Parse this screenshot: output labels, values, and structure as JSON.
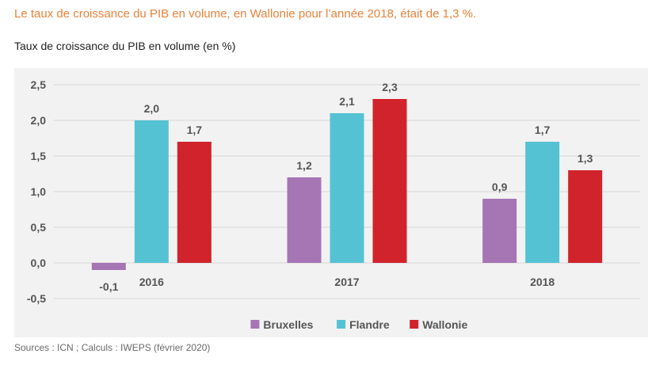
{
  "headline": "Le taux de croissance du PIB en volume, en Wallonie pour l’année 2018, était de 1,3 %.",
  "source": "Sources : ICN ; Calculs : IWEPS (février 2020)",
  "colors": {
    "headline": "#e8823a",
    "grid": "#d6d6d6",
    "axis_text": "#555555",
    "panel_bg": "#f2f2f2"
  },
  "chart_data": {
    "type": "bar",
    "title": "Taux de croissance du PIB en volume (en %)",
    "categories": [
      "2016",
      "2017",
      "2018"
    ],
    "series": [
      {
        "name": "Bruxelles",
        "color": "#a575b4",
        "values": [
          -0.1,
          1.2,
          0.9
        ],
        "labels": [
          "-0,1",
          "1,2",
          "0,9"
        ]
      },
      {
        "name": "Flandre",
        "color": "#55c2d4",
        "values": [
          2.0,
          2.1,
          1.7
        ],
        "labels": [
          "2,0",
          "2,1",
          "1,7"
        ]
      },
      {
        "name": "Wallonie",
        "color": "#d0232b",
        "values": [
          1.7,
          2.3,
          1.3
        ],
        "labels": [
          "1,7",
          "2,3",
          "1,3"
        ]
      }
    ],
    "ylim": [
      -0.5,
      2.5
    ],
    "yticks": [
      2.5,
      2.0,
      1.5,
      1.0,
      0.5,
      0.0,
      -0.5
    ],
    "ytick_labels": [
      "2,5",
      "2,0",
      "1,5",
      "1,0",
      "0,5",
      "0,0",
      "-0,5"
    ],
    "grid": true,
    "legend_position": "bottom-center"
  }
}
